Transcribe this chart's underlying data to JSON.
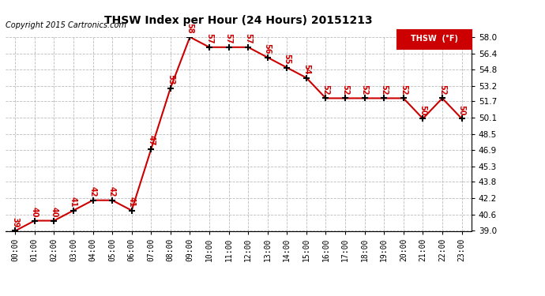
{
  "title": "THSW Index per Hour (24 Hours) 20151213",
  "copyright": "Copyright 2015 Cartronics.com",
  "legend_label": "THSW  (°F)",
  "hours": [
    0,
    1,
    2,
    3,
    4,
    5,
    6,
    7,
    8,
    9,
    10,
    11,
    12,
    13,
    14,
    15,
    16,
    17,
    18,
    19,
    20,
    21,
    22,
    23
  ],
  "values": [
    39,
    40,
    40,
    41,
    42,
    42,
    41,
    47,
    53,
    58,
    57,
    57,
    57,
    56,
    55,
    54,
    52,
    52,
    52,
    52,
    52,
    50,
    52,
    50
  ],
  "ylim": [
    39.0,
    58.0
  ],
  "yticks": [
    39.0,
    40.6,
    42.2,
    43.8,
    45.3,
    46.9,
    48.5,
    50.1,
    51.7,
    53.2,
    54.8,
    56.4,
    58.0
  ],
  "line_color": "#cc0000",
  "marker_color": "#000000",
  "label_color": "#cc0000",
  "bg_color": "#ffffff",
  "grid_color": "#bbbbbb",
  "title_color": "#000000",
  "legend_bg": "#cc0000",
  "legend_text_color": "#ffffff",
  "copyright_color": "#000000"
}
